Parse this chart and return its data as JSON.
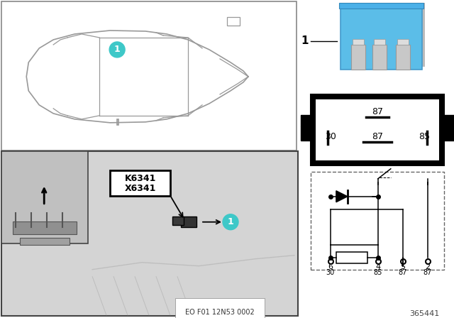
{
  "bg_color": "#ffffff",
  "car_line_color": "#999999",
  "teal_color": "#3ec8c8",
  "relay_blue": "#5bbde8",
  "relay_gray": "#b0b0b0",
  "relay_silver": "#c8c8c8",
  "black": "#000000",
  "dark_gray": "#444444",
  "mid_gray": "#888888",
  "light_gray": "#cccccc",
  "photo_bg": "#c0c0c0",
  "photo_main_bg": "#d4d4d4",
  "label_k6341": "K6341",
  "label_x6341": "X6341",
  "eo_label": "EO F01 12N53 0002",
  "part_number": "365441",
  "item_number": "1",
  "pin_top": "87",
  "pin_mid_left": "30",
  "pin_mid_center": "87",
  "pin_mid_right": "85",
  "sch_pins_top": [
    "6",
    "4",
    "5",
    "2"
  ],
  "sch_pins_bot": [
    "30",
    "85",
    "87",
    "87"
  ]
}
